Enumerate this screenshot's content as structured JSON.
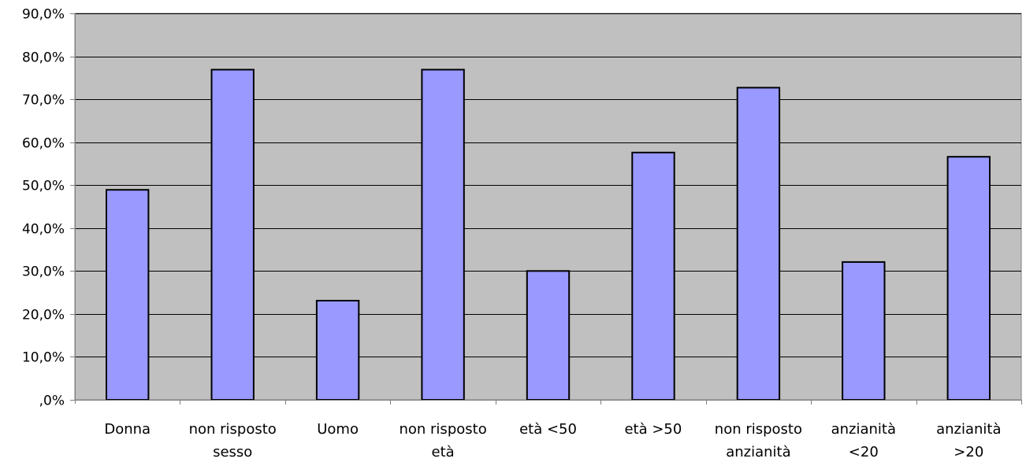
{
  "chart_data": {
    "type": "bar",
    "title": "",
    "xlabel": "",
    "ylabel": "",
    "categories": [
      "Donna",
      "non risposto sesso",
      "Uomo",
      "non risposto età",
      "età <50",
      "età >50",
      "non risposto anzianità",
      "anzianità <20",
      "anzianità >20"
    ],
    "category_lines": [
      [
        "Donna"
      ],
      [
        "non risposto",
        "sesso"
      ],
      [
        "Uomo"
      ],
      [
        "non risposto",
        "età"
      ],
      [
        "età <50"
      ],
      [
        "età >50"
      ],
      [
        "non risposto",
        "anzianità"
      ],
      [
        "anzianità",
        "<20"
      ],
      [
        "anzianità",
        ">20"
      ]
    ],
    "values": [
      48.9,
      76.9,
      23.1,
      76.9,
      30.0,
      57.6,
      72.7,
      32.1,
      56.6
    ],
    "ylim": [
      0,
      90
    ],
    "y_ticks": [
      0,
      10,
      20,
      30,
      40,
      50,
      60,
      70,
      80,
      90
    ],
    "y_tick_labels": [
      ",0%",
      "10,0%",
      "20,0%",
      "30,0%",
      "40,0%",
      "50,0%",
      "60,0%",
      "70,0%",
      "80,0%",
      "90,0%"
    ],
    "grid": true,
    "colors": {
      "plot_background": "#c0c0c0",
      "bar_fill": "#9999ff",
      "bar_stroke": "#000000",
      "grid": "#000000",
      "axis": "#808080"
    }
  }
}
